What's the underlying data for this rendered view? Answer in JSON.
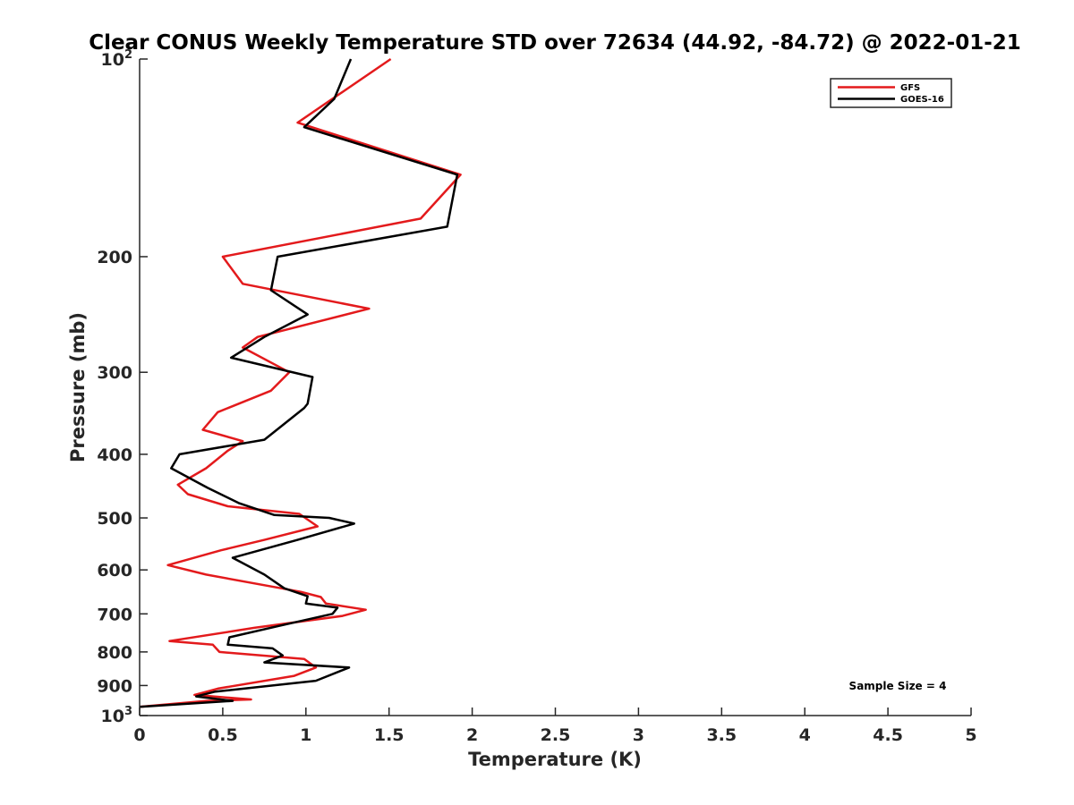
{
  "chart_data": {
    "type": "line",
    "title": "Clear CONUS Weekly Temperature STD over 72634 (44.92, -84.72) @ 2022-01-21",
    "xlabel": "Temperature (K)",
    "ylabel": "Pressure (mb)",
    "xlim": [
      0,
      5
    ],
    "ylim": [
      100,
      1000
    ],
    "y_scale": "log",
    "y_reversed": true,
    "grid": false,
    "legend_position": "top-right",
    "x_ticks": [
      "0",
      "0.5",
      "1",
      "1.5",
      "2",
      "2.5",
      "3",
      "3.5",
      "4",
      "4.5",
      "5"
    ],
    "y_ticks": [
      {
        "value": 100,
        "base": "10",
        "exp": "2"
      },
      {
        "value": 200,
        "label": "200"
      },
      {
        "value": 300,
        "label": "300"
      },
      {
        "value": 400,
        "label": "400"
      },
      {
        "value": 500,
        "label": "500"
      },
      {
        "value": 600,
        "label": "600"
      },
      {
        "value": 700,
        "label": "700"
      },
      {
        "value": 800,
        "label": "800"
      },
      {
        "value": 900,
        "label": "900"
      },
      {
        "value": 1000,
        "base": "10",
        "exp": "3"
      }
    ],
    "annotation": "Sample Size = 4",
    "series": [
      {
        "name": "GFS",
        "color": "#e31a1c",
        "points": [
          [
            1.51,
            100
          ],
          [
            0.95,
            125
          ],
          [
            1.93,
            150
          ],
          [
            1.69,
            175
          ],
          [
            0.5,
            200
          ],
          [
            0.62,
            220
          ],
          [
            1.38,
            240
          ],
          [
            0.71,
            265
          ],
          [
            0.62,
            275
          ],
          [
            0.9,
            300
          ],
          [
            0.79,
            320
          ],
          [
            0.47,
            345
          ],
          [
            0.38,
            367
          ],
          [
            0.62,
            382
          ],
          [
            0.53,
            395
          ],
          [
            0.4,
            420
          ],
          [
            0.23,
            445
          ],
          [
            0.29,
            460
          ],
          [
            0.53,
            480
          ],
          [
            0.96,
            493
          ],
          [
            1.07,
            515
          ],
          [
            0.75,
            540
          ],
          [
            0.49,
            560
          ],
          [
            0.17,
            590
          ],
          [
            0.4,
            610
          ],
          [
            0.97,
            648
          ],
          [
            1.09,
            660
          ],
          [
            1.12,
            675
          ],
          [
            1.36,
            690
          ],
          [
            1.22,
            705
          ],
          [
            0.69,
            735
          ],
          [
            0.18,
            770
          ],
          [
            0.44,
            780
          ],
          [
            0.48,
            800
          ],
          [
            0.99,
            820
          ],
          [
            1.06,
            845
          ],
          [
            0.93,
            870
          ],
          [
            0.47,
            910
          ],
          [
            0.33,
            930
          ],
          [
            0.67,
            945
          ],
          [
            0.4,
            950
          ],
          [
            0.0,
            970
          ]
        ]
      },
      {
        "name": "GOES-16",
        "color": "#000000",
        "points": [
          [
            1.27,
            100
          ],
          [
            1.17,
            115
          ],
          [
            0.99,
            127
          ],
          [
            1.91,
            150
          ],
          [
            1.85,
            180
          ],
          [
            0.83,
            200
          ],
          [
            0.79,
            225
          ],
          [
            1.01,
            245
          ],
          [
            0.75,
            265
          ],
          [
            0.55,
            285
          ],
          [
            1.04,
            305
          ],
          [
            1.01,
            335
          ],
          [
            0.99,
            340
          ],
          [
            0.75,
            380
          ],
          [
            0.24,
            400
          ],
          [
            0.19,
            420
          ],
          [
            0.41,
            450
          ],
          [
            0.6,
            475
          ],
          [
            0.81,
            495
          ],
          [
            1.14,
            500
          ],
          [
            1.29,
            510
          ],
          [
            0.95,
            540
          ],
          [
            0.56,
            575
          ],
          [
            0.75,
            610
          ],
          [
            0.87,
            640
          ],
          [
            1.01,
            658
          ],
          [
            1.0,
            675
          ],
          [
            1.19,
            685
          ],
          [
            1.16,
            700
          ],
          [
            0.84,
            730
          ],
          [
            0.54,
            760
          ],
          [
            0.53,
            780
          ],
          [
            0.8,
            790
          ],
          [
            0.86,
            810
          ],
          [
            0.75,
            830
          ],
          [
            1.26,
            845
          ],
          [
            1.06,
            885
          ],
          [
            0.45,
            920
          ],
          [
            0.34,
            935
          ],
          [
            0.56,
            950
          ],
          [
            0.0,
            970
          ]
        ]
      }
    ]
  }
}
